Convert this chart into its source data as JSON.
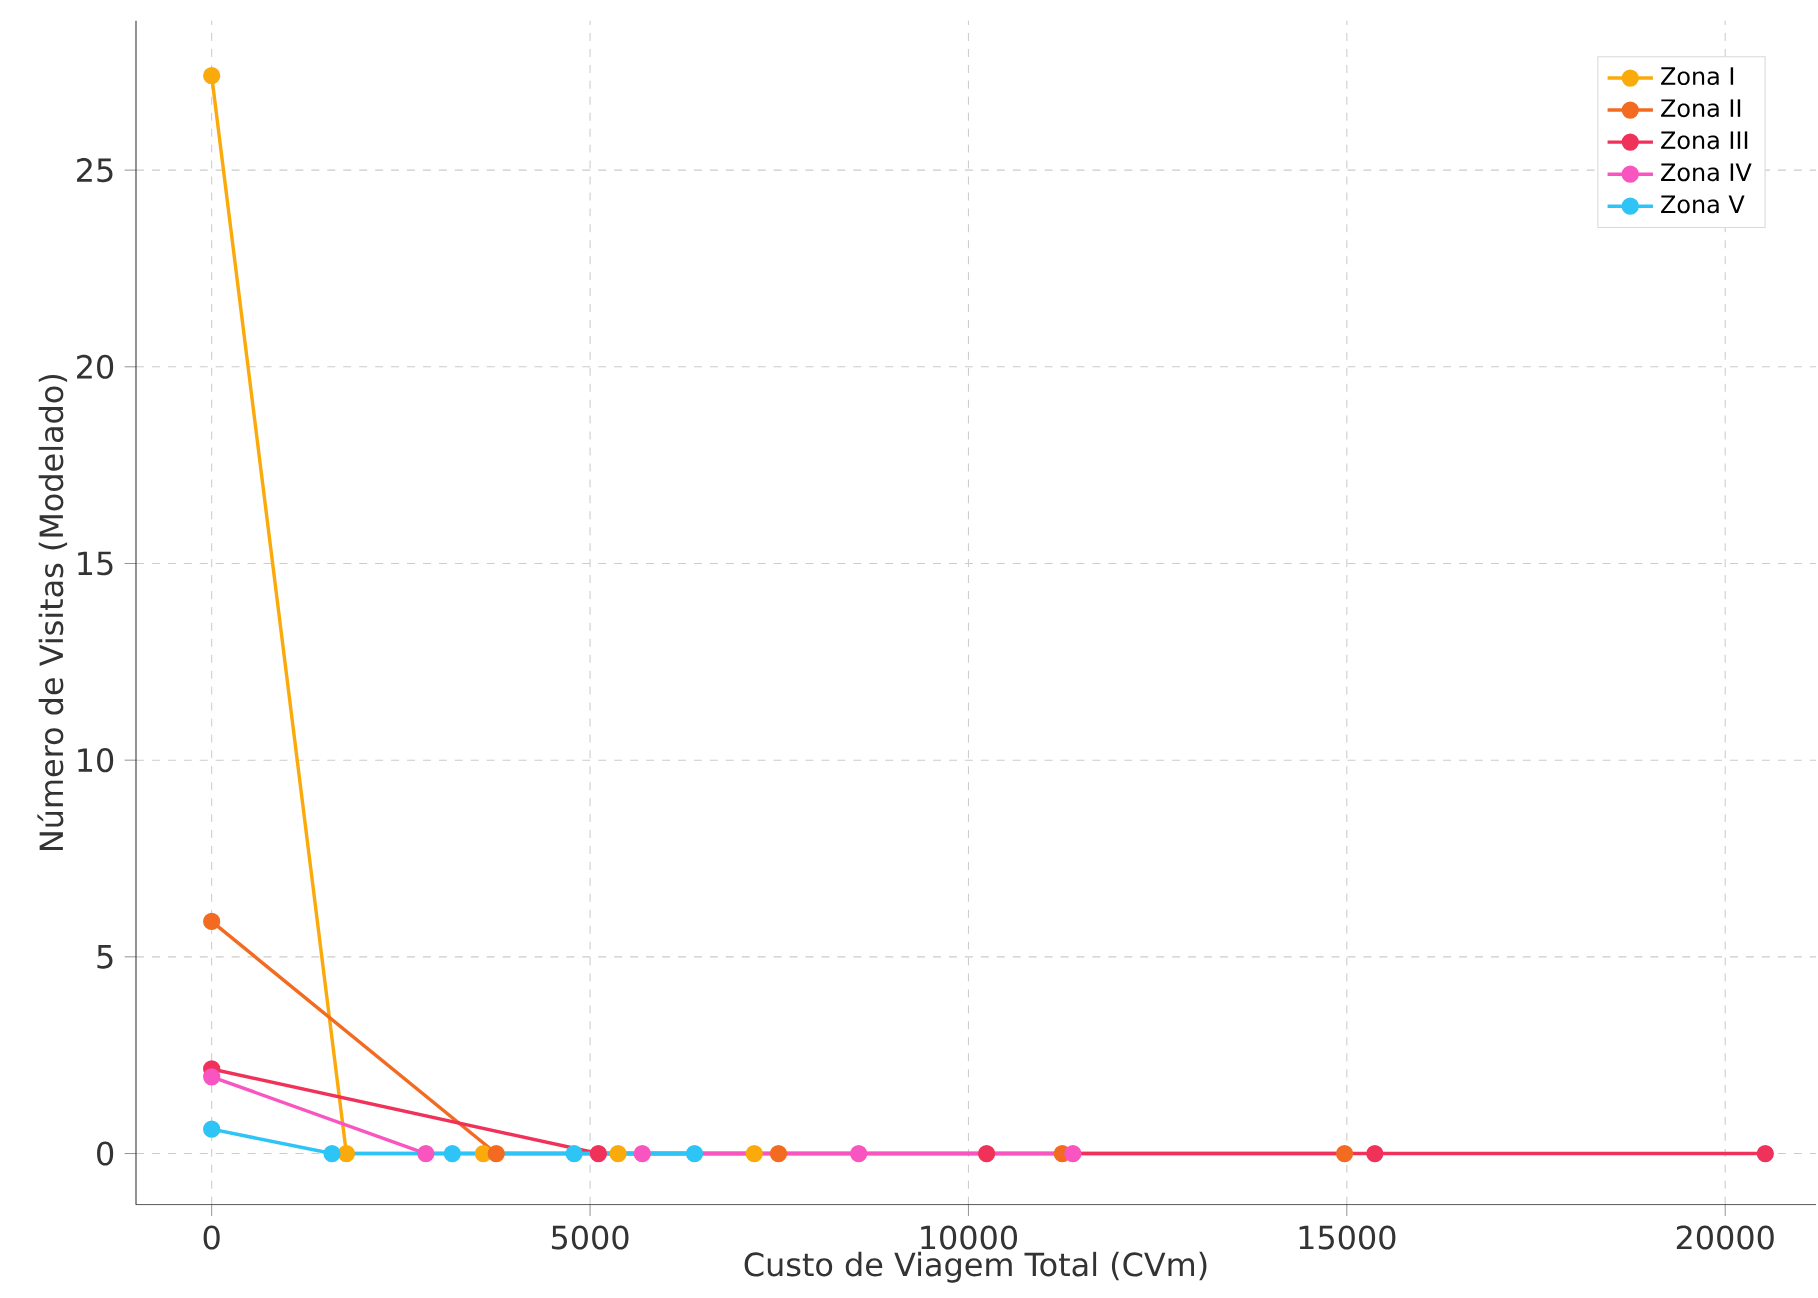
{
  "chart_data": {
    "type": "line",
    "xlabel": "Custo de Viagem Total (CVm)",
    "ylabel": "Número de Visitas (Modelado)",
    "xlim": [
      -1000,
      21200
    ],
    "ylim": [
      -1.3,
      28.8
    ],
    "xticks": [
      0,
      5000,
      10000,
      15000,
      20000
    ],
    "yticks": [
      0,
      5,
      10,
      15,
      20,
      25
    ],
    "grid": true,
    "legend": "top right",
    "marker": "circle",
    "line_style": "solid",
    "series": [
      {
        "name": "Zona I",
        "color": "#fbaa0c",
        "x": [
          0,
          1780,
          3590,
          5370,
          7170
        ],
        "values": [
          27.4,
          0,
          0,
          0,
          0
        ]
      },
      {
        "name": "Zona II",
        "color": "#f26b21",
        "x": [
          0,
          3760,
          7490,
          11240,
          14970
        ],
        "values": [
          5.9,
          0,
          0,
          0,
          0
        ]
      },
      {
        "name": "Zona III",
        "color": "#f0325a",
        "x": [
          0,
          5110,
          10240,
          15370,
          20530
        ],
        "values": [
          2.15,
          0,
          0,
          0,
          0
        ]
      },
      {
        "name": "Zona IV",
        "color": "#f955c0",
        "x": [
          0,
          2830,
          5690,
          8550,
          11380
        ],
        "values": [
          1.95,
          0,
          0,
          0,
          0
        ]
      },
      {
        "name": "Zona V",
        "color": "#2ec4f6",
        "x": [
          0,
          1590,
          3180,
          4790,
          6380
        ],
        "values": [
          0.62,
          0,
          0,
          0,
          0
        ]
      }
    ]
  }
}
